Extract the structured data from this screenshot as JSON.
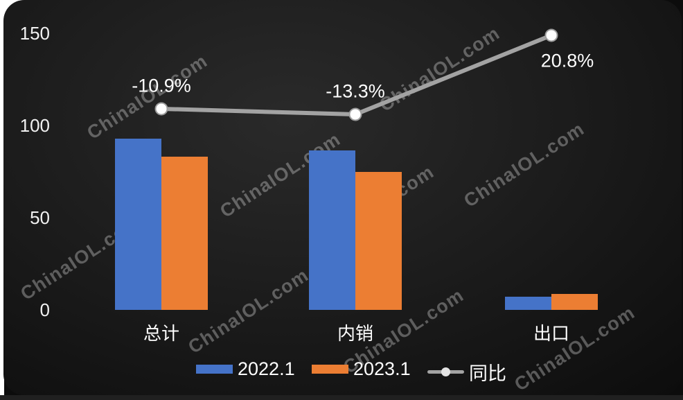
{
  "watermark": {
    "text": "ChinaIOL.com"
  },
  "chart_data": {
    "type": "bar+line combo",
    "categories": [
      "总计",
      "内销",
      "出口"
    ],
    "series": [
      {
        "name": "2022.1",
        "type": "bar",
        "color": "#4573C8",
        "axis": "primary",
        "values": [
          93,
          86.5,
          7
        ]
      },
      {
        "name": "2023.1",
        "type": "bar",
        "color": "#EC7E33",
        "axis": "primary",
        "values": [
          82.9,
          75,
          8.5
        ]
      },
      {
        "name": "同比",
        "type": "line",
        "color": "#A3A3A3",
        "axis": "secondary",
        "values": [
          -10.9,
          -13.3,
          20.8
        ],
        "labels": [
          "-10.9%",
          "-13.3%",
          "20.8%"
        ],
        "unit": "%"
      }
    ],
    "primary_axis": {
      "ticks": [
        0,
        50,
        100,
        150
      ],
      "range": [
        0,
        150
      ]
    },
    "secondary_axis": {
      "visible": false,
      "unit": "%"
    },
    "legend_position": "bottom",
    "grid": false,
    "background": "dark",
    "title": ""
  }
}
